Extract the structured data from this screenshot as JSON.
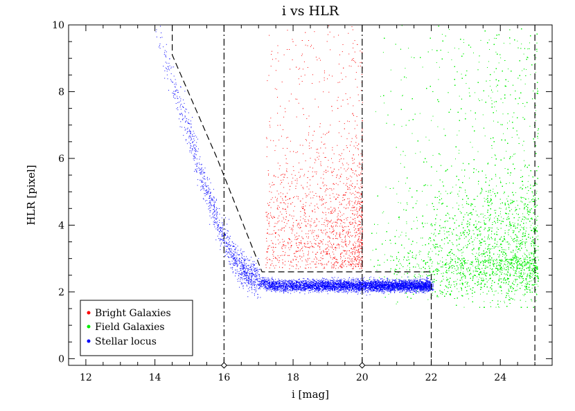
{
  "chart_data": {
    "type": "scatter",
    "title": "i vs HLR",
    "xlabel": "i [mag]",
    "ylabel": "HLR [pixel]",
    "xlim": [
      11.5,
      25.5
    ],
    "ylim": [
      -0.2,
      10.0
    ],
    "xticks": [
      12,
      14,
      16,
      18,
      20,
      22,
      24
    ],
    "yticks": [
      0,
      2,
      4,
      6,
      8,
      10
    ],
    "grid": false,
    "legend_position": "bottom-left",
    "series": [
      {
        "name": "Bright Galaxies",
        "color": "#ff0000",
        "region": {
          "x": [
            17.2,
            20.0
          ],
          "y_min": 2.7,
          "y_max": 10.0
        },
        "density_peak": {
          "x": 19.5,
          "y": 4.5
        },
        "approx_points": 1800
      },
      {
        "name": "Field Galaxies",
        "color": "#00ee00",
        "region": {
          "x": [
            20.0,
            25.1
          ],
          "y_min": 1.5,
          "y_max": 10.0
        },
        "density_peak": {
          "x": 24.0,
          "y": 3.0
        },
        "approx_points": 26000
      },
      {
        "name": "Stellar locus",
        "color": "#0000ff",
        "curve_x": [
          14.0,
          14.4,
          14.8,
          15.2,
          15.6,
          16.0,
          16.5,
          17.0,
          17.5,
          18.0,
          20.0,
          22.0
        ],
        "curve_y": [
          10.0,
          8.7,
          7.4,
          6.0,
          4.7,
          3.6,
          2.7,
          2.3,
          2.2,
          2.2,
          2.2,
          2.2
        ],
        "approx_points": 6000
      }
    ],
    "boundary_lines": [
      {
        "style": "dashed",
        "points": [
          [
            14.5,
            10.0
          ],
          [
            14.5,
            9.1
          ],
          [
            15.8,
            6.0
          ],
          [
            17.1,
            2.6
          ],
          [
            22.0,
            2.6
          ],
          [
            22.0,
            -0.2
          ]
        ]
      },
      {
        "style": "dashed",
        "points": [
          [
            25.0,
            10.0
          ],
          [
            25.0,
            -0.2
          ]
        ]
      },
      {
        "style": "dash-dot",
        "points": [
          [
            16.0,
            10.0
          ],
          [
            16.0,
            -0.2
          ]
        ]
      },
      {
        "style": "dash-dot",
        "points": [
          [
            20.0,
            10.0
          ],
          [
            20.0,
            -0.2
          ]
        ]
      }
    ],
    "axis_markers": [
      16,
      20
    ]
  }
}
